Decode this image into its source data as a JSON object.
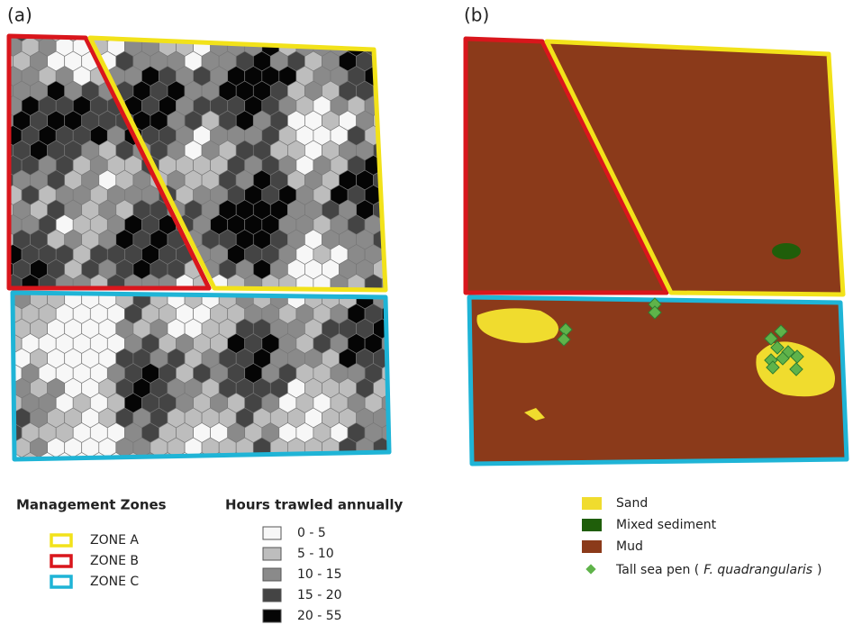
{
  "panels": [
    {
      "label": "(a)"
    },
    {
      "label": "(b)"
    }
  ],
  "legend_zones": {
    "title": "Management Zones",
    "items": [
      {
        "label": "ZONE A",
        "color": "#f2e21a"
      },
      {
        "label": "ZONE B",
        "color": "#d9161c"
      },
      {
        "label": "ZONE C",
        "color": "#1fb4d6"
      }
    ]
  },
  "legend_hours": {
    "title": "Hours trawled annually",
    "items": [
      {
        "label": "0 - 5",
        "color": "#f7f7f7"
      },
      {
        "label": "5 - 10",
        "color": "#bdbdbd"
      },
      {
        "label": "10 - 15",
        "color": "#8a8a8a"
      },
      {
        "label": "15 - 20",
        "color": "#444444"
      },
      {
        "label": "20 - 55",
        "color": "#050505"
      }
    ]
  },
  "legend_habitat": {
    "items": [
      {
        "label": "Sand",
        "color": "#f0dc2e"
      },
      {
        "label": "Mixed sediment",
        "color": "#1f5e0a"
      },
      {
        "label": "Mud",
        "color": "#8b3a1a"
      }
    ],
    "sea_pen": {
      "label": "Tall sea pen (",
      "species": "F. quadrangularis",
      "close": ")",
      "color": "#5fb34a"
    }
  }
}
